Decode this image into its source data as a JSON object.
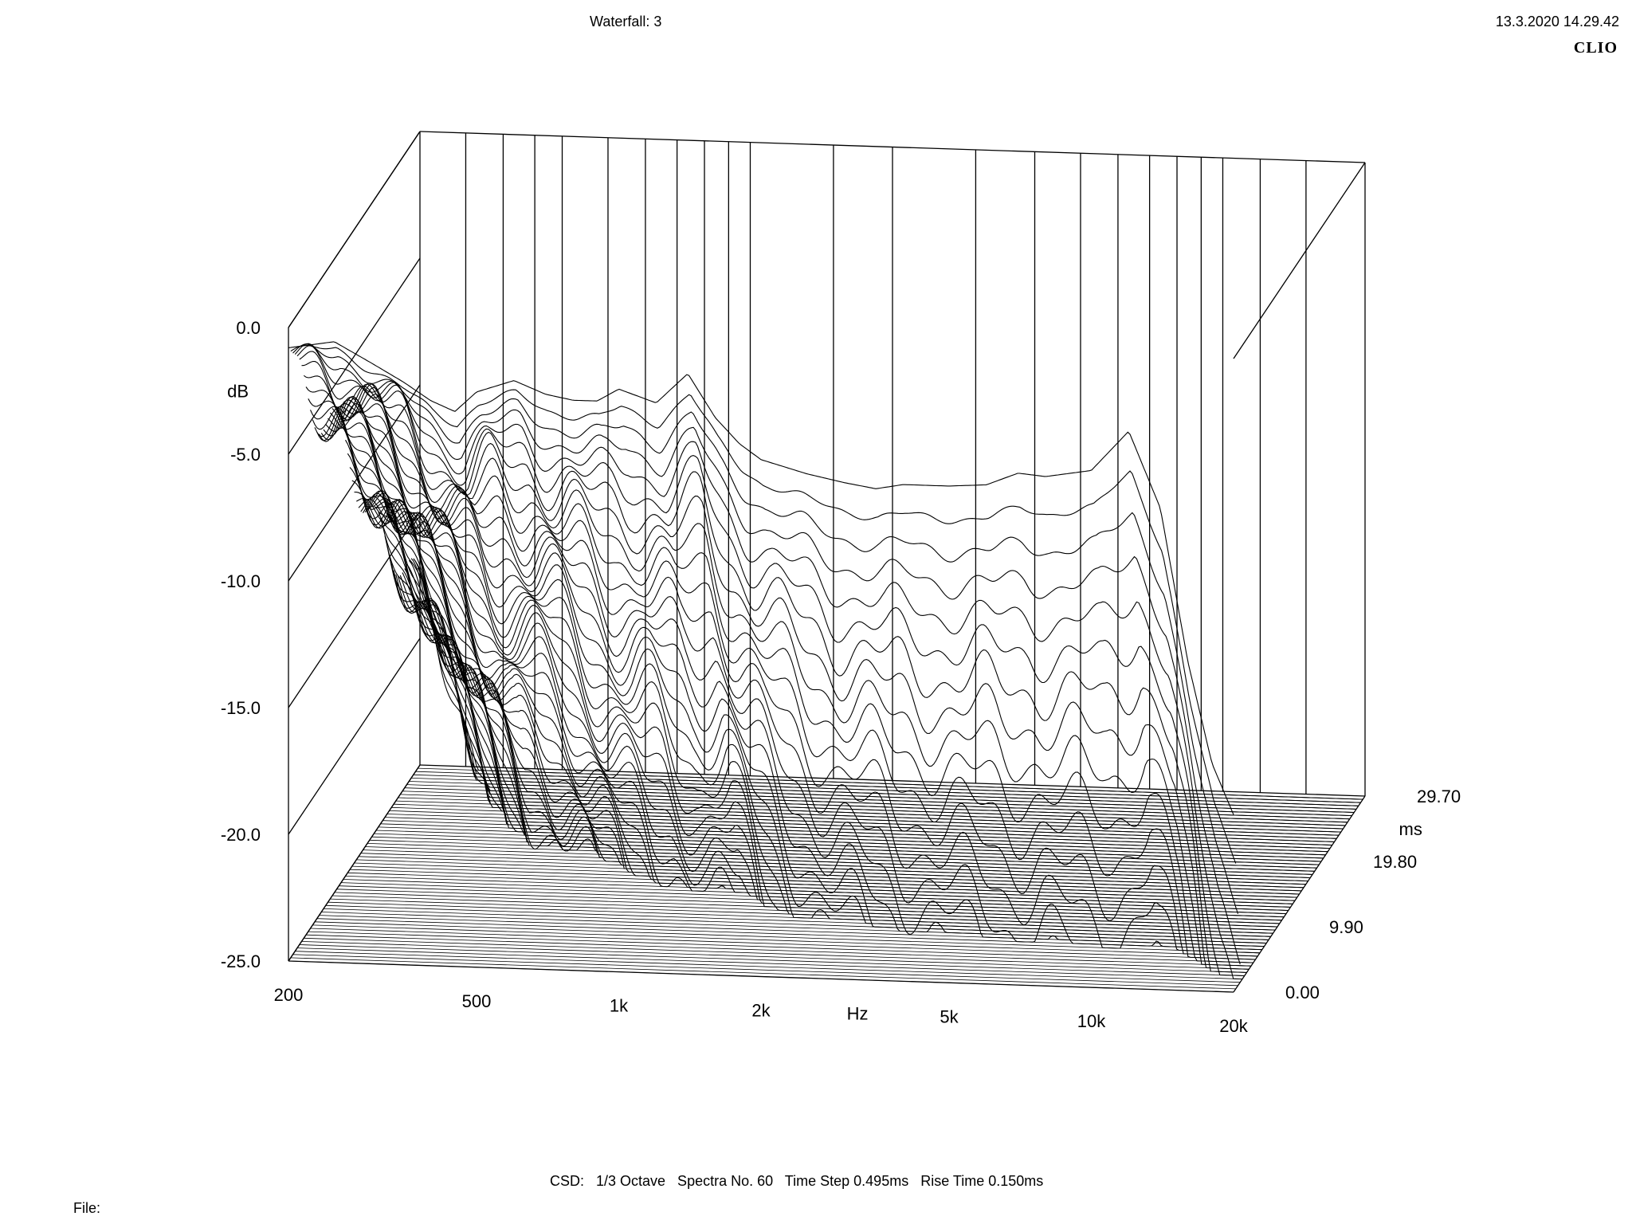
{
  "header": {
    "title": "Waterfall: 3",
    "timestamp": "13.3.2020 14.29.42",
    "brand": "CLIO"
  },
  "footer": {
    "info": "CSD:   1/3 Octave   Spectra No. 60   Time Step 0.495ms   Rise Time 0.150ms",
    "file_label": "File:"
  },
  "chart_data": {
    "type": "waterfall",
    "title": "Waterfall: 3",
    "xlabel": "Hz",
    "ylabel": "dB",
    "zlabel": "ms",
    "x_scale": "log",
    "xlim": [
      200,
      20000
    ],
    "ylim": [
      -25.0,
      0.0
    ],
    "zlim": [
      0.0,
      29.7
    ],
    "x_ticks": [
      "200",
      "500",
      "1k",
      "2k",
      "5k",
      "10k",
      "20k"
    ],
    "y_ticks": [
      "0.0",
      "-5.0",
      "-10.0",
      "-15.0",
      "-20.0",
      "-25.0"
    ],
    "z_ticks": [
      "0.00",
      "9.90",
      "19.80",
      "29.70"
    ],
    "spectra_count": 60,
    "time_step_ms": 0.495,
    "rise_time_ms": 0.15,
    "smoothing": "1/3 Octave",
    "first_spectrum_db": {
      "freq_hz": [
        200,
        250,
        300,
        350,
        400,
        450,
        500,
        600,
        700,
        800,
        900,
        1000,
        1200,
        1400,
        1600,
        1800,
        2000,
        2500,
        3000,
        3500,
        4000,
        5000,
        6000,
        7000,
        8000,
        10000,
        12000,
        14000,
        16000,
        18000,
        20000
      ],
      "level_db": [
        -0.8,
        -0.5,
        -1.3,
        -2.0,
        -2.7,
        -3.1,
        -2.3,
        -1.8,
        -2.3,
        -2.5,
        -2.5,
        -2.0,
        -2.5,
        -1.3,
        -3.0,
        -4.0,
        -4.6,
        -5.1,
        -5.4,
        -5.6,
        -5.4,
        -5.4,
        -5.3,
        -4.8,
        -4.9,
        -4.6,
        -3.0,
        -6.0,
        -12.0,
        -16.0,
        -18.0
      ]
    }
  }
}
